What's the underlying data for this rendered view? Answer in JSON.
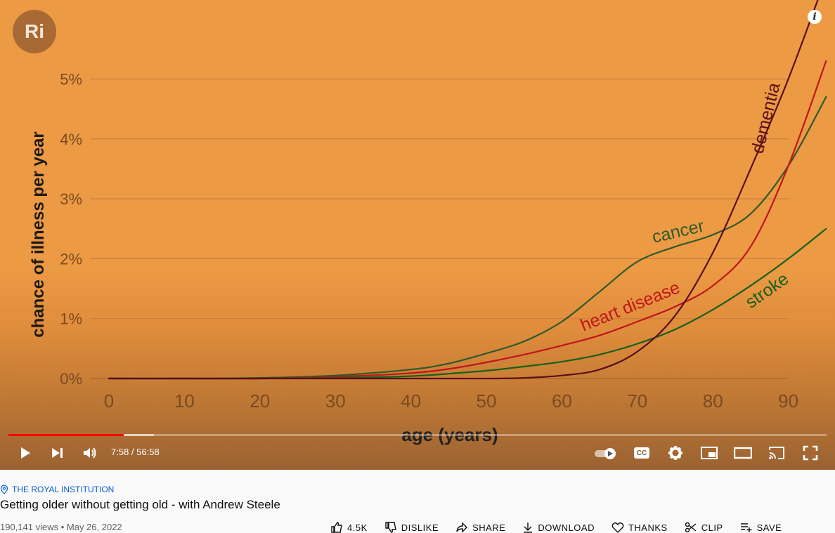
{
  "video": {
    "channel_logo_text": "Ri",
    "info_icon": "i",
    "time_display": "7:58 / 56:58",
    "progress_fraction": 0.1405,
    "buffered_fraction": 0.178
  },
  "chart_data": {
    "type": "line",
    "xlabel": "age (years)",
    "ylabel": "chance of illness per year",
    "xlim": [
      0,
      95
    ],
    "ylim": [
      0,
      5.5
    ],
    "x_ticks": [
      "0",
      "10",
      "20",
      "30",
      "40",
      "50",
      "60",
      "70",
      "80",
      "90"
    ],
    "y_ticks": [
      "0%",
      "1%",
      "2%",
      "3%",
      "4%",
      "5%"
    ],
    "grid": true,
    "series": [
      {
        "name": "cancer",
        "color": "#2f5a2a",
        "x": [
          0,
          10,
          20,
          30,
          40,
          45,
          50,
          55,
          60,
          65,
          70,
          75,
          80,
          85,
          90,
          95
        ],
        "y": [
          0,
          0,
          0.01,
          0.05,
          0.15,
          0.25,
          0.42,
          0.62,
          0.95,
          1.45,
          1.95,
          2.2,
          2.4,
          2.75,
          3.55,
          4.7
        ]
      },
      {
        "name": "heart disease",
        "color": "#c0161a",
        "x": [
          0,
          10,
          20,
          30,
          40,
          45,
          50,
          55,
          60,
          65,
          70,
          75,
          80,
          85,
          90,
          95
        ],
        "y": [
          0,
          0,
          0,
          0.03,
          0.09,
          0.16,
          0.27,
          0.4,
          0.55,
          0.72,
          0.95,
          1.2,
          1.55,
          2.2,
          3.55,
          5.3
        ]
      },
      {
        "name": "stroke",
        "color": "#166018",
        "x": [
          0,
          10,
          20,
          30,
          40,
          45,
          50,
          55,
          60,
          65,
          70,
          75,
          80,
          85,
          90,
          95
        ],
        "y": [
          0,
          0,
          0,
          0.01,
          0.04,
          0.08,
          0.13,
          0.2,
          0.28,
          0.4,
          0.58,
          0.82,
          1.15,
          1.55,
          2.0,
          2.5
        ]
      },
      {
        "name": "dementia",
        "color": "#5a0f1a",
        "x": [
          0,
          10,
          20,
          30,
          40,
          45,
          50,
          55,
          60,
          65,
          70,
          75,
          80,
          85,
          90,
          95
        ],
        "y": [
          0,
          0,
          0,
          0,
          0,
          0,
          0,
          0.01,
          0.05,
          0.15,
          0.45,
          1.05,
          2.1,
          3.5,
          5.0,
          6.7
        ]
      }
    ]
  },
  "controls": {
    "play_icon": "play-icon",
    "next_icon": "next-icon",
    "volume_icon": "volume-icon",
    "autoplay_icon": "autoplay-toggle-icon",
    "cc_label": "CC",
    "settings_icon": "gear-icon",
    "miniplayer_icon": "miniplayer-icon",
    "theater_icon": "theater-icon",
    "cast_icon": "cast-icon",
    "fullscreen_icon": "fullscreen-icon"
  },
  "info": {
    "channel_name": "THE ROYAL INSTITUTION",
    "title": "Getting older without getting old - with Andrew Steele",
    "meta": "190,141 views • May 26, 2022",
    "actions": {
      "like": "4.5K",
      "dislike": "DISLIKE",
      "share": "SHARE",
      "download": "DOWNLOAD",
      "thanks": "THANKS",
      "clip": "CLIP",
      "save": "SAVE"
    }
  },
  "colors": {
    "background_orange": "#ec9a44",
    "progress_red": "#ff0000",
    "link_blue": "#065fd4"
  }
}
